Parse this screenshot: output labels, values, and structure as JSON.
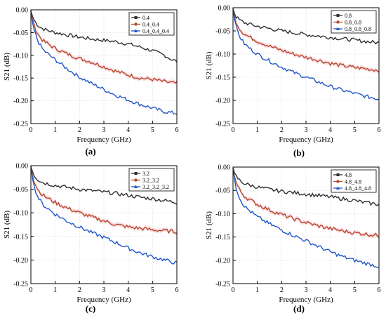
{
  "colors": {
    "series1": "#303030",
    "series2": "#b5482a",
    "series3": "#1f56c8",
    "band": "#f3b6c4",
    "grid": "#dddddd"
  },
  "chart_data": [
    {
      "type": "line",
      "panel_label": "(a)",
      "xlabel": "Frequency (GHz)",
      "ylabel": "S21 (dB)",
      "xlim": [
        0,
        6
      ],
      "ylim": [
        -0.25,
        0
      ],
      "xticks": [
        0,
        1,
        2,
        3,
        4,
        5,
        6
      ],
      "yticks": [
        0.0,
        -0.05,
        -0.1,
        -0.15,
        -0.2,
        -0.25
      ],
      "xtick_labels": [
        "0",
        "1",
        "2",
        "3",
        "4",
        "5",
        "6"
      ],
      "ytick_labels": [
        "0.00",
        "-0.05",
        "-0.10",
        "-0.15",
        "-0.20",
        "-0.25"
      ],
      "grid": true,
      "legend_position": "top-right",
      "series": [
        {
          "name": "0.4",
          "marker": "square",
          "points": [
            [
              0,
              -0.002
            ],
            [
              0.1,
              -0.02
            ],
            [
              0.3,
              -0.035
            ],
            [
              0.5,
              -0.042
            ],
            [
              1,
              -0.05
            ],
            [
              1.5,
              -0.055
            ],
            [
              2,
              -0.06
            ],
            [
              2.5,
              -0.064
            ],
            [
              3,
              -0.067
            ],
            [
              3.5,
              -0.07
            ],
            [
              4,
              -0.075
            ],
            [
              4.5,
              -0.082
            ],
            [
              5,
              -0.09
            ],
            [
              5.5,
              -0.1
            ],
            [
              5.8,
              -0.11
            ],
            [
              6,
              -0.113
            ]
          ]
        },
        {
          "name": "0.4_0.4",
          "marker": "circle",
          "points": [
            [
              0,
              -0.002
            ],
            [
              0.1,
              -0.03
            ],
            [
              0.3,
              -0.055
            ],
            [
              0.5,
              -0.068
            ],
            [
              1,
              -0.085
            ],
            [
              1.5,
              -0.097
            ],
            [
              2,
              -0.107
            ],
            [
              2.5,
              -0.115
            ],
            [
              3,
              -0.125
            ],
            [
              3.5,
              -0.135
            ],
            [
              4,
              -0.143
            ],
            [
              4.5,
              -0.15
            ],
            [
              5,
              -0.153
            ],
            [
              5.5,
              -0.158
            ],
            [
              6,
              -0.162
            ]
          ]
        },
        {
          "name": "0.4_0.4_0.4",
          "marker": "triangle",
          "points": [
            [
              0,
              -0.002
            ],
            [
              0.1,
              -0.04
            ],
            [
              0.3,
              -0.07
            ],
            [
              0.5,
              -0.088
            ],
            [
              1,
              -0.11
            ],
            [
              1.5,
              -0.13
            ],
            [
              2,
              -0.148
            ],
            [
              2.5,
              -0.162
            ],
            [
              3,
              -0.175
            ],
            [
              3.5,
              -0.188
            ],
            [
              4,
              -0.198
            ],
            [
              4.5,
              -0.208
            ],
            [
              5,
              -0.216
            ],
            [
              5.5,
              -0.224
            ],
            [
              6,
              -0.228
            ]
          ]
        }
      ]
    },
    {
      "type": "line",
      "panel_label": "(b)",
      "xlabel": "Frequency (GHz)",
      "ylabel": "S21 (dB)",
      "xlim": [
        0,
        6
      ],
      "ylim": [
        -0.25,
        0
      ],
      "xticks": [
        0,
        1,
        2,
        3,
        4,
        5,
        6
      ],
      "yticks": [
        0.0,
        -0.05,
        -0.1,
        -0.15,
        -0.2,
        -0.25
      ],
      "xtick_labels": [
        "0",
        "1",
        "2",
        "3",
        "4",
        "5",
        "6"
      ],
      "ytick_labels": [
        "0.00",
        "-0.05",
        "-0.10",
        "-0.15",
        "-0.20",
        "-0.25"
      ],
      "grid": true,
      "legend_position": "top-right",
      "series": [
        {
          "name": "0.8",
          "marker": "square",
          "points": [
            [
              0,
              -0.002
            ],
            [
              0.1,
              -0.018
            ],
            [
              0.3,
              -0.028
            ],
            [
              0.5,
              -0.033
            ],
            [
              1,
              -0.04
            ],
            [
              1.5,
              -0.045
            ],
            [
              2,
              -0.05
            ],
            [
              2.5,
              -0.054
            ],
            [
              3,
              -0.058
            ],
            [
              3.5,
              -0.061
            ],
            [
              4,
              -0.064
            ],
            [
              4.5,
              -0.067
            ],
            [
              5,
              -0.07
            ],
            [
              5.5,
              -0.073
            ],
            [
              6,
              -0.076
            ]
          ]
        },
        {
          "name": "0.8_0.8",
          "marker": "circle",
          "points": [
            [
              0,
              -0.002
            ],
            [
              0.1,
              -0.028
            ],
            [
              0.3,
              -0.048
            ],
            [
              0.5,
              -0.058
            ],
            [
              1,
              -0.072
            ],
            [
              1.5,
              -0.083
            ],
            [
              2,
              -0.092
            ],
            [
              2.5,
              -0.1
            ],
            [
              3,
              -0.107
            ],
            [
              3.5,
              -0.113
            ],
            [
              4,
              -0.12
            ],
            [
              4.5,
              -0.125
            ],
            [
              5,
              -0.129
            ],
            [
              5.5,
              -0.132
            ],
            [
              6,
              -0.135
            ]
          ]
        },
        {
          "name": "0.8_0.8_0.8",
          "marker": "triangle",
          "points": [
            [
              0,
              -0.002
            ],
            [
              0.1,
              -0.038
            ],
            [
              0.3,
              -0.065
            ],
            [
              0.5,
              -0.08
            ],
            [
              1,
              -0.1
            ],
            [
              1.5,
              -0.115
            ],
            [
              2,
              -0.128
            ],
            [
              2.5,
              -0.14
            ],
            [
              3,
              -0.15
            ],
            [
              3.5,
              -0.16
            ],
            [
              4,
              -0.17
            ],
            [
              4.5,
              -0.178
            ],
            [
              5,
              -0.185
            ],
            [
              5.5,
              -0.192
            ],
            [
              6,
              -0.197
            ]
          ]
        }
      ]
    },
    {
      "type": "line",
      "panel_label": "(c)",
      "xlabel": "Frequency (GHz)",
      "ylabel": "S21 (dB)",
      "xlim": [
        0,
        6
      ],
      "ylim": [
        -0.25,
        0
      ],
      "xticks": [
        0,
        1,
        2,
        3,
        4,
        5,
        6
      ],
      "yticks": [
        0.0,
        -0.05,
        -0.1,
        -0.15,
        -0.2,
        -0.25
      ],
      "xtick_labels": [
        "0",
        "1",
        "2",
        "3",
        "4",
        "5",
        "6"
      ],
      "ytick_labels": [
        "0.00",
        "-0.05",
        "-0.10",
        "-0.15",
        "-0.20",
        "-0.25"
      ],
      "grid": true,
      "legend_position": "top-right",
      "series": [
        {
          "name": "3.2",
          "marker": "square",
          "points": [
            [
              0,
              -0.002
            ],
            [
              0.1,
              -0.018
            ],
            [
              0.3,
              -0.03
            ],
            [
              0.5,
              -0.036
            ],
            [
              1,
              -0.042
            ],
            [
              1.5,
              -0.046
            ],
            [
              2,
              -0.05
            ],
            [
              2.5,
              -0.053
            ],
            [
              3,
              -0.056
            ],
            [
              3.5,
              -0.059
            ],
            [
              4,
              -0.063
            ],
            [
              4.5,
              -0.067
            ],
            [
              5,
              -0.07
            ],
            [
              5.5,
              -0.074
            ],
            [
              6,
              -0.078
            ]
          ]
        },
        {
          "name": "3.2_3.2",
          "marker": "circle",
          "points": [
            [
              0,
              -0.002
            ],
            [
              0.1,
              -0.03
            ],
            [
              0.3,
              -0.052
            ],
            [
              0.5,
              -0.063
            ],
            [
              1,
              -0.078
            ],
            [
              1.5,
              -0.09
            ],
            [
              2,
              -0.1
            ],
            [
              2.5,
              -0.109
            ],
            [
              3,
              -0.117
            ],
            [
              3.5,
              -0.125
            ],
            [
              4,
              -0.13
            ],
            [
              4.5,
              -0.133
            ],
            [
              5,
              -0.136
            ],
            [
              5.5,
              -0.138
            ],
            [
              6,
              -0.14
            ]
          ]
        },
        {
          "name": "3.2_3.2_3.2",
          "marker": "triangle",
          "points": [
            [
              0,
              -0.002
            ],
            [
              0.1,
              -0.04
            ],
            [
              0.3,
              -0.068
            ],
            [
              0.5,
              -0.083
            ],
            [
              1,
              -0.103
            ],
            [
              1.5,
              -0.118
            ],
            [
              2,
              -0.13
            ],
            [
              2.5,
              -0.142
            ],
            [
              3,
              -0.152
            ],
            [
              3.5,
              -0.163
            ],
            [
              4,
              -0.175
            ],
            [
              4.5,
              -0.185
            ],
            [
              5,
              -0.193
            ],
            [
              5.5,
              -0.2
            ],
            [
              6,
              -0.207
            ]
          ]
        }
      ]
    },
    {
      "type": "line",
      "panel_label": "(d)",
      "xlabel": "Frequency (GHz)",
      "ylabel": "S21 (dB)",
      "xlim": [
        0,
        6
      ],
      "ylim": [
        -0.25,
        0
      ],
      "xticks": [
        0,
        1,
        2,
        3,
        4,
        5,
        6
      ],
      "yticks": [
        0.0,
        -0.05,
        -0.1,
        -0.15,
        -0.2,
        -0.25
      ],
      "xtick_labels": [
        "0",
        "1",
        "2",
        "3",
        "4",
        "5",
        "6"
      ],
      "ytick_labels": [
        "0.00",
        "-0.05",
        "-0.10",
        "-0.15",
        "-0.20",
        "-0.25"
      ],
      "grid": true,
      "legend_position": "top-right",
      "series": [
        {
          "name": "4.8",
          "marker": "square",
          "points": [
            [
              0,
              -0.002
            ],
            [
              0.1,
              -0.018
            ],
            [
              0.3,
              -0.03
            ],
            [
              0.5,
              -0.036
            ],
            [
              1,
              -0.043
            ],
            [
              1.5,
              -0.048
            ],
            [
              2,
              -0.052
            ],
            [
              2.5,
              -0.055
            ],
            [
              3,
              -0.058
            ],
            [
              3.5,
              -0.061
            ],
            [
              4,
              -0.064
            ],
            [
              4.5,
              -0.068
            ],
            [
              5,
              -0.072
            ],
            [
              5.5,
              -0.077
            ],
            [
              6,
              -0.08
            ]
          ]
        },
        {
          "name": "4.8_4.8",
          "marker": "circle",
          "points": [
            [
              0,
              -0.002
            ],
            [
              0.1,
              -0.03
            ],
            [
              0.3,
              -0.052
            ],
            [
              0.5,
              -0.064
            ],
            [
              1,
              -0.08
            ],
            [
              1.5,
              -0.092
            ],
            [
              2,
              -0.102
            ],
            [
              2.5,
              -0.111
            ],
            [
              3,
              -0.119
            ],
            [
              3.5,
              -0.126
            ],
            [
              4,
              -0.132
            ],
            [
              4.5,
              -0.137
            ],
            [
              5,
              -0.141
            ],
            [
              5.5,
              -0.144
            ],
            [
              6,
              -0.147
            ]
          ]
        },
        {
          "name": "4.8_4.8_4.8",
          "marker": "triangle",
          "points": [
            [
              0,
              -0.002
            ],
            [
              0.1,
              -0.04
            ],
            [
              0.3,
              -0.07
            ],
            [
              0.5,
              -0.086
            ],
            [
              1,
              -0.107
            ],
            [
              1.5,
              -0.122
            ],
            [
              2,
              -0.135
            ],
            [
              2.5,
              -0.147
            ],
            [
              3,
              -0.158
            ],
            [
              3.5,
              -0.17
            ],
            [
              4,
              -0.182
            ],
            [
              4.5,
              -0.192
            ],
            [
              5,
              -0.2
            ],
            [
              5.5,
              -0.207
            ],
            [
              6,
              -0.213
            ]
          ]
        }
      ]
    }
  ]
}
